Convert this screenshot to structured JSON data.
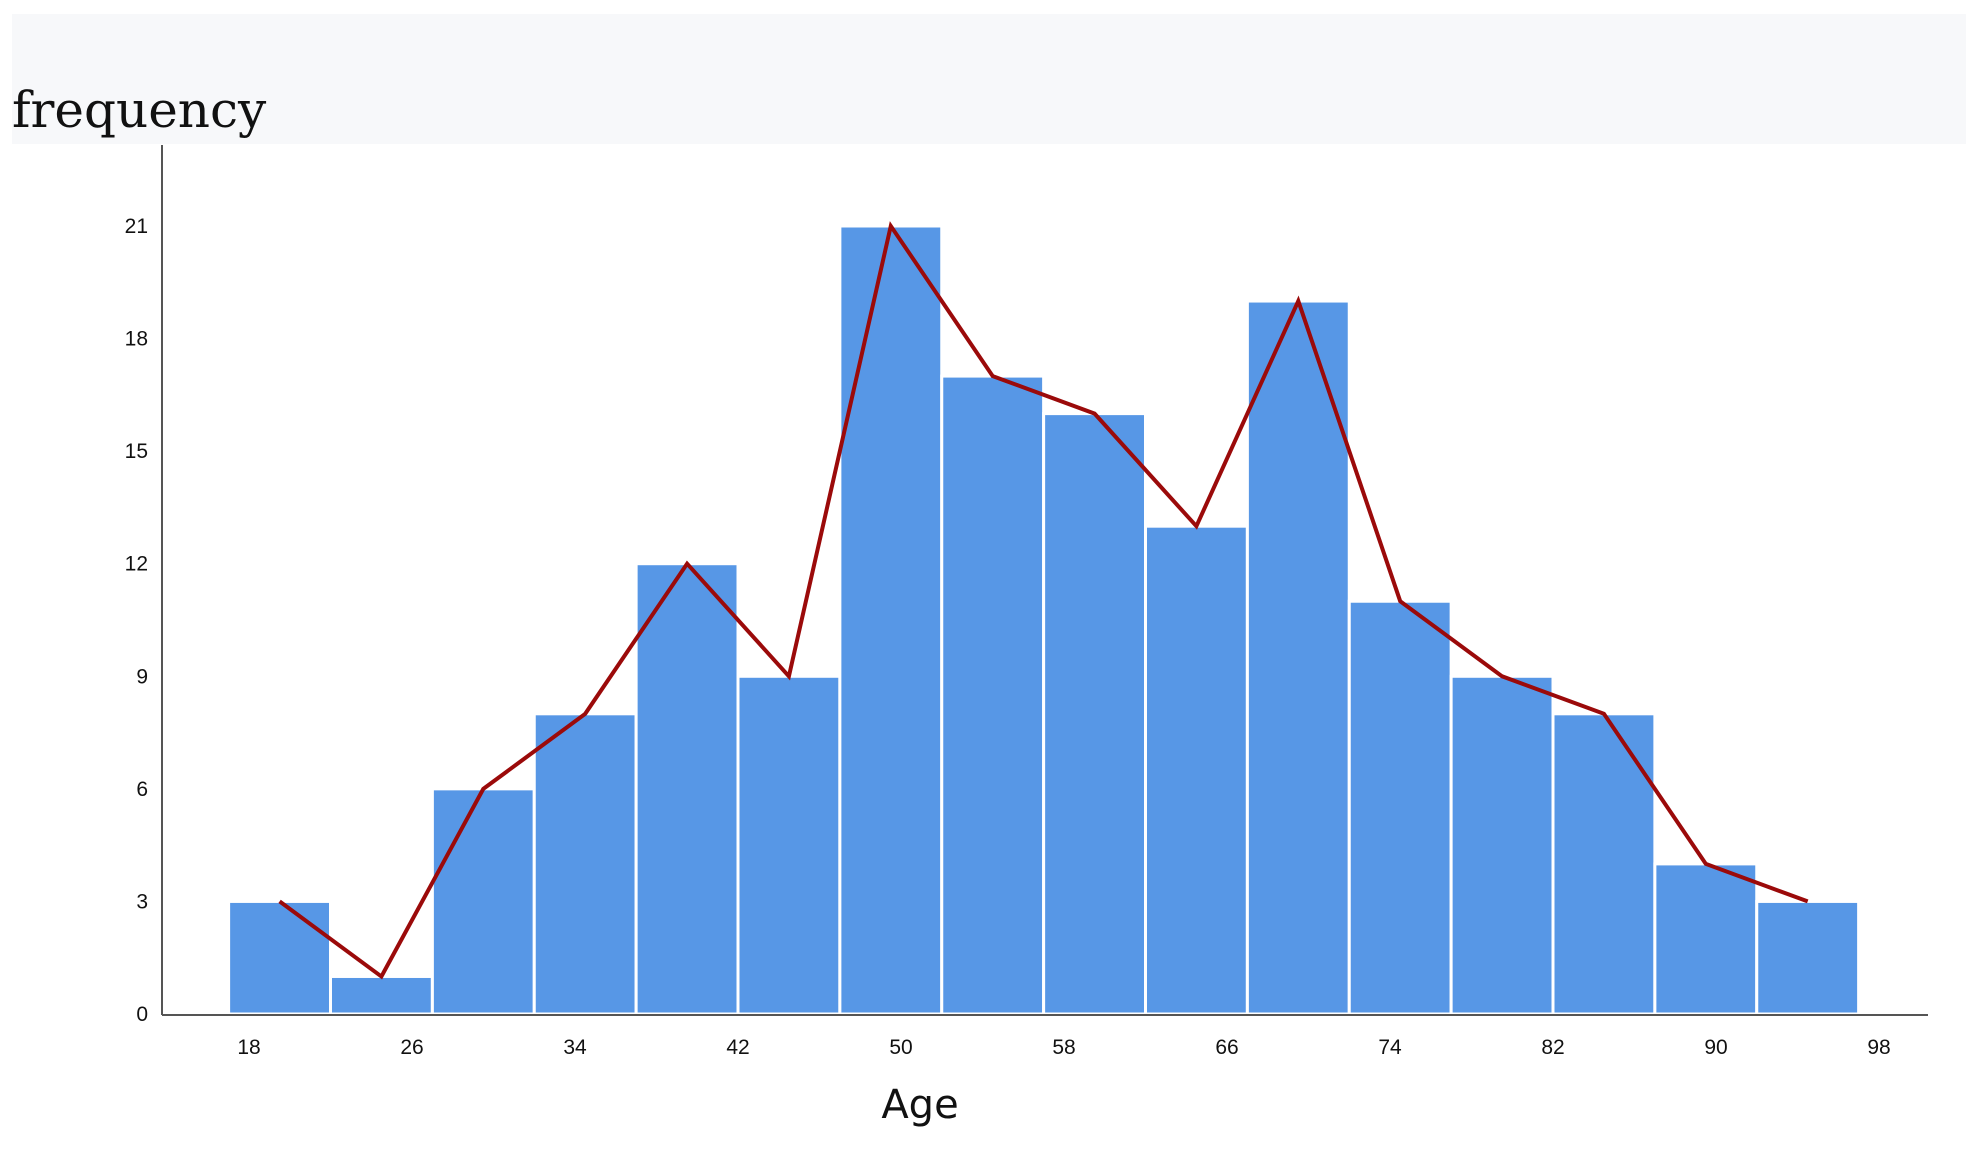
{
  "chart_data": {
    "type": "bar",
    "subtype": "histogram-with-polygon",
    "ylabel": "frequency",
    "xlabel": "Age",
    "bin_width": 5,
    "bins": [
      {
        "start": 17,
        "end": 22,
        "value": 3
      },
      {
        "start": 22,
        "end": 27,
        "value": 1
      },
      {
        "start": 27,
        "end": 32,
        "value": 6
      },
      {
        "start": 32,
        "end": 37,
        "value": 8
      },
      {
        "start": 37,
        "end": 42,
        "value": 12
      },
      {
        "start": 42,
        "end": 47,
        "value": 9
      },
      {
        "start": 47,
        "end": 52,
        "value": 21
      },
      {
        "start": 52,
        "end": 57,
        "value": 17
      },
      {
        "start": 57,
        "end": 62,
        "value": 16
      },
      {
        "start": 62,
        "end": 67,
        "value": 13
      },
      {
        "start": 67,
        "end": 72,
        "value": 19
      },
      {
        "start": 72,
        "end": 77,
        "value": 11
      },
      {
        "start": 77,
        "end": 82,
        "value": 9
      },
      {
        "start": 82,
        "end": 87,
        "value": 8
      },
      {
        "start": 87,
        "end": 92,
        "value": 4
      },
      {
        "start": 92,
        "end": 97,
        "value": 3
      }
    ],
    "x_ticks": [
      18,
      26,
      34,
      42,
      50,
      58,
      66,
      74,
      82,
      90,
      98
    ],
    "y_ticks": [
      0,
      3,
      6,
      9,
      12,
      15,
      18,
      21
    ],
    "xlim": [
      15,
      100
    ],
    "ylim": [
      0,
      23
    ],
    "grid": false,
    "colors": {
      "bar": "#5797e6",
      "bar_edge": "#ffffff",
      "line": "#9b0a0a",
      "axis": "#555555"
    }
  }
}
